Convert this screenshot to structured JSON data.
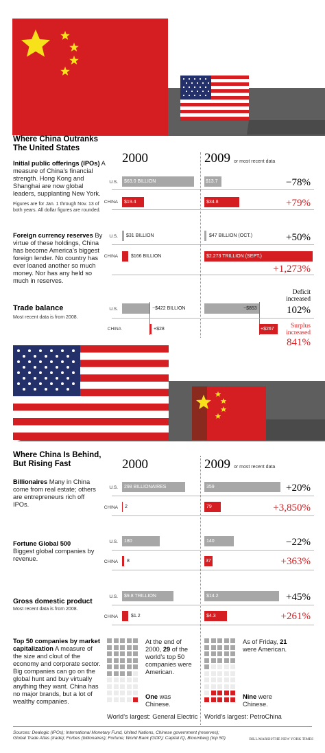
{
  "colors": {
    "us_bar": "#a7a7a7",
    "china_bar": "#d51e21",
    "flag_red": "#d51e21",
    "flag_blue": "#24306a",
    "star_yellow": "#f7e11a"
  },
  "section1": {
    "title_line1": "Where China Outranks",
    "title_line2": "The United States",
    "year_2000": "2000",
    "year_2009": "2009",
    "recent": "or most recent data",
    "ipo": {
      "title": "Initial public offerings (IPOs)",
      "desc": "A measure of China’s financial strength. Hong Kong and Shanghai are now global leaders, supplanting New York.",
      "note": "Figures are for Jan. 1 through Nov. 13 of both years. All dollar figures are rounded.",
      "us_label": "U.S.",
      "china_label": "CHINA",
      "us_2000": "$63.0 BILLION",
      "china_2000": "$19.4",
      "us_2009": "$13.7",
      "china_2009": "$34.8",
      "us_change": "−78%",
      "china_change": "+79%"
    },
    "reserves": {
      "title": "Foreign currency reserves",
      "desc": "By virtue of these holdings, China has become America’s biggest foreign lender. No country has ever loaned another so much money. Nor has any held so much in reserves.",
      "us_label": "U.S.",
      "china_label": "CHINA",
      "us_2000": "$31 BILLION",
      "china_2000": "$166 BILLION",
      "us_2009": "$47 BILLION (OCT.)",
      "china_2009": "$2.273 TRILLION (SEPT.)",
      "us_change": "+50%",
      "china_change": "+1,273%"
    },
    "trade": {
      "title": "Trade balance",
      "note": "Most recent data is from 2008.",
      "us_label": "U.S.",
      "china_label": "CHINA",
      "us_2000": "−$422 BILLION",
      "china_2000": "+$28",
      "us_2009": "−$853",
      "china_2009": "+$267",
      "us_status_line1": "Deficit",
      "us_status_line2": "increased",
      "us_change": "102%",
      "china_status_line1": "Surplus",
      "china_status_line2": "increased",
      "china_change": "841%"
    }
  },
  "section2": {
    "title_line1": "Where China Is Behind,",
    "title_line2": "But Rising Fast",
    "year_2000": "2000",
    "year_2009": "2009",
    "recent": "or most recent data",
    "billionaires": {
      "title": "Billionaires",
      "desc": "Many in China come from real estate; others are entrepreneurs rich off IPOs.",
      "us_label": "U.S.",
      "china_label": "CHINA",
      "us_2000": "298 BILLIONAIRES",
      "china_2000": "2",
      "us_2009": "359",
      "china_2009": "79",
      "us_change": "+20%",
      "china_change": "+3,850%"
    },
    "fortune": {
      "title": "Fortune Global 500",
      "desc": "Biggest global companies by revenue.",
      "us_label": "U.S.",
      "china_label": "CHINA",
      "us_2000": "180",
      "china_2000": "8",
      "us_2009": "140",
      "china_2009": "37",
      "us_change": "−22%",
      "china_change": "+363%"
    },
    "gdp": {
      "title": "Gross domestic product",
      "note": "Most recent data is from 2008.",
      "us_label": "U.S.",
      "china_label": "CHINA",
      "us_2000": "$9.8 TRILLION",
      "china_2000": "$1.2",
      "us_2009": "$14.2",
      "china_2009": "$4.3",
      "us_change": "+45%",
      "china_change": "+261%"
    },
    "top50": {
      "title": "Top 50 companies by market capitalization",
      "desc": "A measure of the size and clout of the economy and corporate sector. Big companies can go on the global hunt and buy virtually anything they want. China has no major brands, but a lot of wealthy companies.",
      "us_2000_pre": "At the end of 2000,",
      "us_2000_num": "29",
      "us_2000_post": "of the world’s top 50 companies were American.",
      "cn_2000_num": "One",
      "cn_2000_post": "was Chinese.",
      "us_2009_pre": "As of Friday,",
      "us_2009_num": "21",
      "us_2009_post": "were American.",
      "cn_2009_num": "Nine",
      "cn_2009_post": "were Chinese.",
      "largest_2000": "World’s largest: General Electric",
      "largest_2009": "World’s largest: PetroChina"
    }
  },
  "chart_data": [
    {
      "type": "bar",
      "title": "Initial public offerings (IPOs)",
      "categories": [
        "2000",
        "2009"
      ],
      "series": [
        {
          "name": "U.S.",
          "values": [
            63.0,
            13.7
          ]
        },
        {
          "name": "CHINA",
          "values": [
            19.4,
            34.8
          ]
        }
      ]
    },
    {
      "type": "bar",
      "title": "Foreign currency reserves",
      "categories": [
        "2000",
        "2009"
      ],
      "series": [
        {
          "name": "U.S.",
          "values": [
            31,
            47
          ]
        },
        {
          "name": "CHINA",
          "values": [
            166,
            2273
          ]
        }
      ]
    },
    {
      "type": "bar",
      "title": "Trade balance",
      "categories": [
        "2000",
        "2009"
      ],
      "series": [
        {
          "name": "U.S.",
          "values": [
            -422,
            -853
          ]
        },
        {
          "name": "CHINA",
          "values": [
            28,
            267
          ]
        }
      ]
    },
    {
      "type": "bar",
      "title": "Billionaires",
      "categories": [
        "2000",
        "2009"
      ],
      "series": [
        {
          "name": "U.S.",
          "values": [
            298,
            359
          ]
        },
        {
          "name": "CHINA",
          "values": [
            2,
            79
          ]
        }
      ]
    },
    {
      "type": "bar",
      "title": "Fortune Global 500",
      "categories": [
        "2000",
        "2009"
      ],
      "series": [
        {
          "name": "U.S.",
          "values": [
            180,
            140
          ]
        },
        {
          "name": "CHINA",
          "values": [
            8,
            37
          ]
        }
      ]
    },
    {
      "type": "bar",
      "title": "Gross domestic product",
      "categories": [
        "2000",
        "2009"
      ],
      "series": [
        {
          "name": "U.S.",
          "values": [
            9.8,
            14.2
          ]
        },
        {
          "name": "CHINA",
          "values": [
            1.2,
            4.3
          ]
        }
      ]
    },
    {
      "type": "table",
      "title": "Top 50 companies by market capitalization",
      "categories": [
        "2000",
        "2009"
      ],
      "series": [
        {
          "name": "American",
          "values": [
            29,
            21
          ]
        },
        {
          "name": "Chinese",
          "values": [
            1,
            9
          ]
        }
      ]
    }
  ],
  "sources": "Sources: Dealogic (IPOs); International Monetary Fund, United Nations, Chinese government (reserves); Global Trade Atlas (trade); Forbes (billionaires); Fortune; World Bank (GDP); Capital IQ, Bloomberg (top 50)",
  "credit": "BILL MARSH/THE NEW YORK TIMES"
}
